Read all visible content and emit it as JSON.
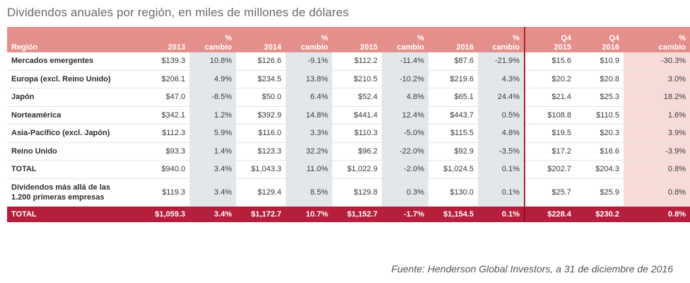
{
  "title": "Dividendos anuales por región, en miles de millones de dólares",
  "header": {
    "region": "Región",
    "y2013": "2013",
    "pct_top": "%",
    "pct_bottom": "cambio",
    "y2014": "2014",
    "y2015": "2015",
    "y2016": "2016",
    "q4_top": "Q4",
    "q4_2015": "2015",
    "q4_2016": "2016"
  },
  "rows": [
    {
      "label": "Mercados emergentes",
      "v2013": "$139.3",
      "c2013": "10.8%",
      "v2014": "$126.6",
      "c2014": "-9.1%",
      "v2015": "$112.2",
      "c2015": "-11.4%",
      "v2016": "$87.6",
      "c2016": "-21.9%",
      "q2015": "$15.6",
      "q2016": "$10.9",
      "qc": "-30.3%"
    },
    {
      "label": "Europa (excl. Reino Unido)",
      "v2013": "$206.1",
      "c2013": "4.9%",
      "v2014": "$234.5",
      "c2014": "13.8%",
      "v2015": "$210.5",
      "c2015": "-10.2%",
      "v2016": "$219.6",
      "c2016": "4.3%",
      "q2015": "$20.2",
      "q2016": "$20.8",
      "qc": "3.0%"
    },
    {
      "label": "Japón",
      "v2013": "$47.0",
      "c2013": "-8.5%",
      "v2014": "$50.0",
      "c2014": "6.4%",
      "v2015": "$52.4",
      "c2015": "4.8%",
      "v2016": "$65.1",
      "c2016": "24.4%",
      "q2015": "$21.4",
      "q2016": "$25.3",
      "qc": "18.2%"
    },
    {
      "label": "Norteamérica",
      "v2013": "$342.1",
      "c2013": "1.2%",
      "v2014": "$392.9",
      "c2014": "14.8%",
      "v2015": "$441.4",
      "c2015": "12.4%",
      "v2016": "$443.7",
      "c2016": "0.5%",
      "q2015": "$108.8",
      "q2016": "$110.5",
      "qc": "1.6%"
    },
    {
      "label": "Asia-Pacífico (excl. Japón)",
      "v2013": "$112.3",
      "c2013": "5.9%",
      "v2014": "$116.0",
      "c2014": "3.3%",
      "v2015": "$110.3",
      "c2015": "-5.0%",
      "v2016": "$115.5",
      "c2016": "4.8%",
      "q2015": "$19.5",
      "q2016": "$20.3",
      "qc": "3.9%"
    },
    {
      "label": "Reino Unido",
      "v2013": "$93.3",
      "c2013": "1.4%",
      "v2014": "$123.3",
      "c2014": "32.2%",
      "v2015": "$96.2",
      "c2015": "-22.0%",
      "v2016": "$92.9",
      "c2016": "-3.5%",
      "q2015": "$17.2",
      "q2016": "$16.6",
      "qc": "-3.9%"
    },
    {
      "label": "TOTAL",
      "v2013": "$940.0",
      "c2013": "3.4%",
      "v2014": "$1,043.3",
      "c2014": "11.0%",
      "v2015": "$1,022.9",
      "c2015": "-2.0%",
      "v2016": "$1,024.5",
      "c2016": "0.1%",
      "q2015": "$202.7",
      "q2016": "$204.3",
      "qc": "0.8%"
    },
    {
      "label_line1": "Dividendos más allá de las",
      "label_line2": "1.200 primeras empresas",
      "v2013": "$119.3",
      "c2013": "3.4%",
      "v2014": "$129.4",
      "c2014": "8.5%",
      "v2015": "$129.8",
      "c2015": "0.3%",
      "v2016": "$130.0",
      "c2016": "0.1%",
      "q2015": "$25.7",
      "q2016": "$25.9",
      "qc": "0.8%"
    }
  ],
  "total": {
    "label": "TOTAL",
    "v2013": "$1,059.3",
    "c2013": "3.4%",
    "v2014": "$1,172.7",
    "c2014": "10.7%",
    "v2015": "$1,152.7",
    "c2015": "-1.7%",
    "v2016": "$1,154.5",
    "c2016": "0.1%",
    "q2015": "$228.4",
    "q2016": "$230.2",
    "qc": "0.8%"
  },
  "source": "Fuente: Henderson Global Investors, a 31 de diciembre de 2016",
  "colors": {
    "header": "#e58f8c",
    "total_row": "#b51f3b",
    "pct_shade": "#e3e7ea",
    "q4_pct_shade": "#f7dbd9",
    "separator": "#b0243a"
  }
}
